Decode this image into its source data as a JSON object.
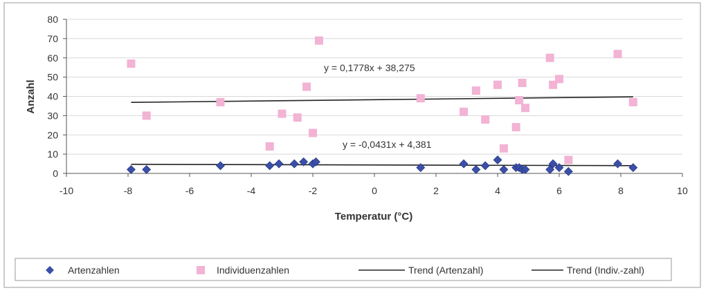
{
  "chart_data": {
    "type": "scatter",
    "title": "",
    "xlabel": "Temperatur (°C)",
    "ylabel": "Anzahl",
    "xlim": [
      -10,
      10
    ],
    "ylim": [
      0,
      80
    ],
    "x_ticks": [
      -10,
      -8,
      -6,
      -4,
      -2,
      0,
      2,
      4,
      6,
      8,
      10
    ],
    "y_ticks": [
      0,
      10,
      20,
      30,
      40,
      50,
      60,
      70,
      80
    ],
    "grid": "horizontal",
    "legend_position": "bottom",
    "series": [
      {
        "name": "Artenzahlen",
        "marker": "diamond",
        "color": "#3a4fa8",
        "points": [
          {
            "x": -7.9,
            "y": 2
          },
          {
            "x": -7.4,
            "y": 2
          },
          {
            "x": -5.0,
            "y": 4
          },
          {
            "x": -3.4,
            "y": 4
          },
          {
            "x": -3.1,
            "y": 5
          },
          {
            "x": -2.6,
            "y": 5
          },
          {
            "x": -2.3,
            "y": 6
          },
          {
            "x": -2.0,
            "y": 5
          },
          {
            "x": -1.9,
            "y": 6
          },
          {
            "x": 1.5,
            "y": 3
          },
          {
            "x": 2.9,
            "y": 5
          },
          {
            "x": 3.3,
            "y": 2
          },
          {
            "x": 3.6,
            "y": 4
          },
          {
            "x": 4.0,
            "y": 7
          },
          {
            "x": 4.2,
            "y": 2
          },
          {
            "x": 4.6,
            "y": 3
          },
          {
            "x": 4.7,
            "y": 3
          },
          {
            "x": 4.8,
            "y": 2
          },
          {
            "x": 4.9,
            "y": 2
          },
          {
            "x": 5.7,
            "y": 2
          },
          {
            "x": 5.8,
            "y": 5
          },
          {
            "x": 6.0,
            "y": 3
          },
          {
            "x": 6.3,
            "y": 1
          },
          {
            "x": 7.9,
            "y": 5
          },
          {
            "x": 8.4,
            "y": 3
          }
        ]
      },
      {
        "name": "Individuenzahlen",
        "marker": "square",
        "color": "#f2b3d4",
        "points": [
          {
            "x": -7.9,
            "y": 57
          },
          {
            "x": -7.4,
            "y": 30
          },
          {
            "x": -5.0,
            "y": 37
          },
          {
            "x": -3.4,
            "y": 14
          },
          {
            "x": -3.0,
            "y": 31
          },
          {
            "x": -2.5,
            "y": 29
          },
          {
            "x": -2.2,
            "y": 45
          },
          {
            "x": -2.0,
            "y": 21
          },
          {
            "x": -1.8,
            "y": 69
          },
          {
            "x": 1.5,
            "y": 39
          },
          {
            "x": 2.9,
            "y": 32
          },
          {
            "x": 3.3,
            "y": 43
          },
          {
            "x": 3.6,
            "y": 28
          },
          {
            "x": 4.0,
            "y": 46
          },
          {
            "x": 4.2,
            "y": 13
          },
          {
            "x": 4.6,
            "y": 24
          },
          {
            "x": 4.7,
            "y": 38
          },
          {
            "x": 4.8,
            "y": 47
          },
          {
            "x": 4.9,
            "y": 34
          },
          {
            "x": 5.7,
            "y": 60
          },
          {
            "x": 5.8,
            "y": 46
          },
          {
            "x": 6.0,
            "y": 49
          },
          {
            "x": 6.3,
            "y": 7
          },
          {
            "x": 7.9,
            "y": 62
          },
          {
            "x": 8.4,
            "y": 37
          }
        ]
      }
    ],
    "trendlines": [
      {
        "name": "Trend (Artenzahl)",
        "slope": -0.0431,
        "intercept": 4.381,
        "x_range": [
          -7.9,
          8.4
        ],
        "equation": "y = -0,0431x + 4,381",
        "color": "#222222"
      },
      {
        "name": "Trend (Indiv.-zahl)",
        "slope": 0.1778,
        "intercept": 38.275,
        "x_range": [
          -7.9,
          8.4
        ],
        "equation": "y = 0,1778x + 38,275",
        "color": "#222222"
      }
    ]
  },
  "legend": {
    "items": [
      {
        "label": "Artenzahlen",
        "kind": "diamond",
        "color": "#3a4fa8"
      },
      {
        "label": "Individuenzahlen",
        "kind": "square",
        "color": "#f2b3d4"
      },
      {
        "label": "Trend (Artenzahl)",
        "kind": "line",
        "color": "#222222"
      },
      {
        "label": "Trend (Indiv.-zahl)",
        "kind": "line",
        "color": "#222222"
      }
    ]
  }
}
